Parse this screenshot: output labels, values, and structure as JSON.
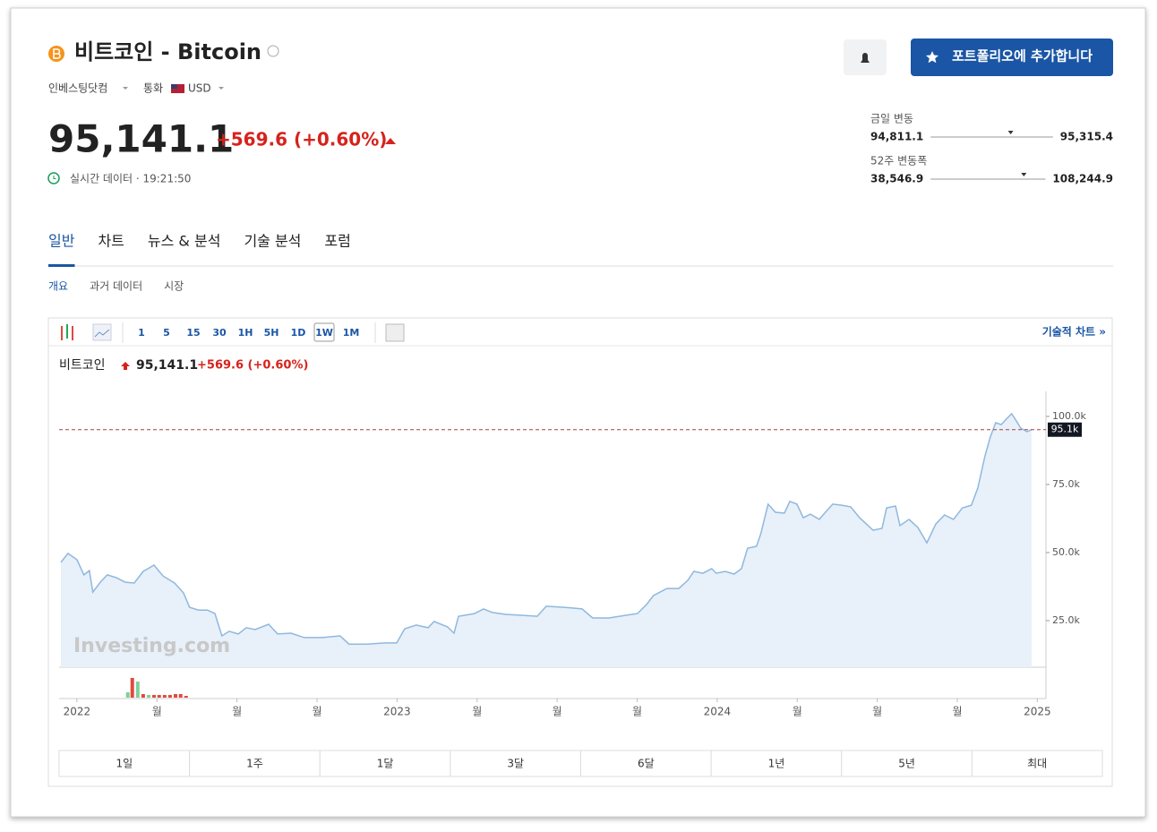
{
  "header": {
    "title": "비트코인 - Bitcoin",
    "exchange": "인베스팅닷컴",
    "currency_label": "통화",
    "currency": "USD",
    "portfolio_button": "포트폴리오에 추가합니다"
  },
  "quote": {
    "price": "95,141.1",
    "change": "+569.6 (+0.60%)",
    "realtime": "실시간 데이터 · 19:21:50"
  },
  "ranges": [
    {
      "label": "금일 변동",
      "low": "94,811.1",
      "high": "95,315.4"
    },
    {
      "label": "52주 변동폭",
      "low": "38,546.9",
      "high": "108,244.9"
    }
  ],
  "tabs": [
    "일반",
    "차트",
    "뉴스 & 분석",
    "기술 분석",
    "포럼"
  ],
  "subtabs": [
    "개요",
    "과거 데이터",
    "시장"
  ],
  "toolbar": {
    "intervals": [
      "1",
      "5",
      "15",
      "30",
      "1H",
      "5H",
      "1D",
      "1W",
      "1M"
    ],
    "tech_chart": "기술적 차트 »"
  },
  "chart": {
    "type": "area",
    "name": "비트코인",
    "watermark": "Investing.com",
    "color": "#8fb8de",
    "fill": "#e8f0f9",
    "x": [
      2021.95,
      2021.972,
      2022.0,
      2022.022,
      2022.039,
      2022.05,
      2022.073,
      2022.095,
      2022.123,
      2022.151,
      2022.179,
      2022.207,
      2022.241,
      2022.269,
      2022.305,
      2022.333,
      2022.352,
      2022.38,
      2022.408,
      2022.431,
      2022.453,
      2022.476,
      2022.504,
      2022.529,
      2022.557,
      2022.599,
      2022.627,
      2022.669,
      2022.71,
      2022.766,
      2022.822,
      2022.85,
      2022.906,
      2022.962,
      2022.999,
      2023.024,
      2023.06,
      2023.097,
      2023.116,
      2023.158,
      2023.178,
      2023.192,
      2023.242,
      2023.27,
      2023.298,
      2023.34,
      2023.382,
      2023.438,
      2023.466,
      2023.522,
      2023.578,
      2023.611,
      2023.662,
      2023.717,
      2023.751,
      2023.779,
      2023.801,
      2023.843,
      2023.88,
      2023.908,
      2023.927,
      2023.955,
      2023.983,
      2023.997,
      2024.025,
      2024.053,
      2024.076,
      2024.095,
      2024.123,
      2024.137,
      2024.159,
      2024.182,
      2024.21,
      2024.227,
      2024.249,
      2024.269,
      2024.291,
      2024.319,
      2024.338,
      2024.361,
      2024.389,
      2024.417,
      2024.445,
      2024.487,
      2024.515,
      2024.529,
      2024.557,
      2024.571,
      2024.599,
      2024.627,
      2024.655,
      2024.683,
      2024.71,
      2024.738,
      2024.766,
      2024.794,
      2024.814,
      2024.836,
      2024.853,
      2024.87,
      2024.887,
      2024.903,
      2024.92,
      2024.934,
      2024.948,
      2024.968,
      2024.982
    ],
    "values": [
      46400,
      49700,
      47400,
      41800,
      43400,
      35500,
      39100,
      41800,
      40800,
      39100,
      38800,
      43100,
      45400,
      41400,
      38800,
      35200,
      29900,
      28900,
      28900,
      27600,
      19400,
      21100,
      20100,
      22400,
      21700,
      23700,
      20100,
      20400,
      18800,
      18800,
      19400,
      16400,
      16400,
      16800,
      16800,
      22000,
      23400,
      22400,
      24700,
      22700,
      20400,
      26600,
      27600,
      29300,
      28000,
      27300,
      27000,
      26600,
      30300,
      29900,
      29300,
      26000,
      26000,
      27000,
      27600,
      30900,
      34200,
      36800,
      36800,
      39800,
      43100,
      42400,
      44100,
      42400,
      43100,
      42100,
      44100,
      51600,
      52300,
      57200,
      67800,
      64800,
      64500,
      68800,
      67800,
      62800,
      64100,
      62200,
      64800,
      67800,
      67400,
      66800,
      62800,
      58200,
      58900,
      66400,
      67100,
      59900,
      62200,
      59200,
      53600,
      60500,
      63800,
      62200,
      66400,
      67400,
      73700,
      85200,
      92400,
      97700,
      97000,
      99000,
      101000,
      98400,
      95700,
      94400,
      95141.1
    ],
    "xlim": [
      2021.95,
      2025.027
    ],
    "ylim": [
      7900,
      109200
    ],
    "xticks": [
      2022,
      {
        "value": 2022.25,
        "label": "월"
      },
      {
        "value": 2022.5,
        "label": "월"
      },
      {
        "value": 2022.75,
        "label": "월"
      },
      2023,
      {
        "value": 2023.25,
        "label": "월"
      },
      {
        "value": 2023.5,
        "label": "월"
      },
      {
        "value": 2023.75,
        "label": "월"
      },
      2024,
      {
        "value": 2024.25,
        "label": "월"
      },
      {
        "value": 2024.5,
        "label": "월"
      },
      {
        "value": 2024.75,
        "label": "월"
      },
      2025
    ],
    "yticks": [
      {
        "value": 25000,
        "label": "25.0k"
      },
      {
        "value": 50000,
        "label": "50.0k"
      },
      {
        "value": 75000,
        "label": "75.0k"
      },
      {
        "value": 100000,
        "label": "100.0k"
      }
    ],
    "current": {
      "value": 95141.1,
      "label": "95.1k"
    },
    "volume": {
      "x": [
        2022.159,
        2022.173,
        2022.19,
        2022.207,
        2022.224,
        2022.241,
        2022.257,
        2022.274,
        2022.291,
        2022.308,
        2022.324,
        2022.341
      ],
      "values": [
        6,
        22,
        18,
        4,
        3,
        3,
        3,
        3,
        3,
        4,
        4,
        2
      ],
      "colors": [
        "#7fcf9b",
        "#e0493f",
        "#7fcf9b",
        "#e0493f",
        "#7fcf9b",
        "#e0493f",
        "#e0493f",
        "#e0493f",
        "#e0493f",
        "#e0493f",
        "#e0493f",
        "#e0493f"
      ]
    }
  },
  "periods": [
    "1일",
    "1주",
    "1달",
    "3달",
    "6달",
    "1년",
    "5년",
    "최대"
  ]
}
